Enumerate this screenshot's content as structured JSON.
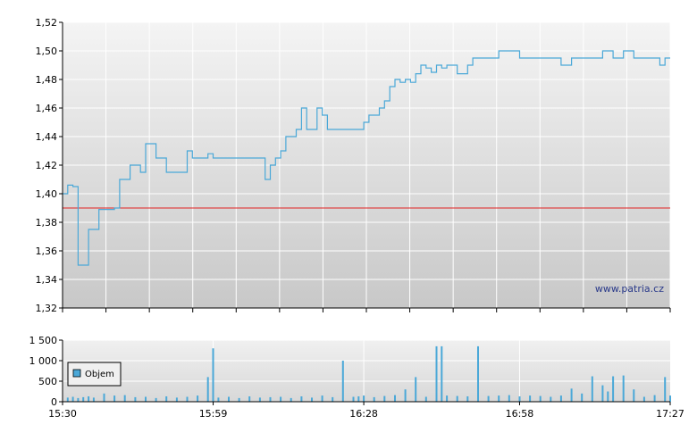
{
  "watermark": "www.patria.cz",
  "colors": {
    "price_line": "#4aa8d8",
    "reference_line": "#e02020",
    "volume_bar": "#4aa8d8",
    "plot_bg_top": "#f4f4f4",
    "plot_bg_bottom": "#c8c8c8",
    "grid": "#ffffff",
    "axis": "#000000"
  },
  "chart_data": [
    {
      "type": "line",
      "title": "",
      "xlabel": "",
      "ylabel": "",
      "ylim": [
        1.32,
        1.52
      ],
      "y_ticks": [
        "1,32",
        "1,34",
        "1,36",
        "1,38",
        "1,40",
        "1,42",
        "1,44",
        "1,46",
        "1,48",
        "1,50",
        "1,52"
      ],
      "x_range": [
        "15:30",
        "17:27"
      ],
      "reference_line": 1.39,
      "grid": true,
      "series": [
        {
          "x": [
            "15:30",
            "15:31",
            "15:32",
            "15:33",
            "15:34",
            "15:35",
            "15:36",
            "15:37",
            "15:38",
            "15:39",
            "15:40",
            "15:41",
            "15:42",
            "15:43",
            "15:44",
            "15:45",
            "15:46",
            "15:47",
            "15:48",
            "15:50",
            "15:51",
            "15:52",
            "15:53",
            "15:54",
            "15:55",
            "15:56",
            "15:58",
            "15:59",
            "16:00",
            "16:01",
            "16:02",
            "16:03",
            "16:05",
            "16:07",
            "16:09",
            "16:10",
            "16:11",
            "16:12",
            "16:13",
            "16:14",
            "16:15",
            "16:16",
            "16:17",
            "16:18",
            "16:19",
            "16:20",
            "16:21",
            "16:22",
            "16:23",
            "16:24",
            "16:26",
            "16:28",
            "16:29",
            "16:30",
            "16:31",
            "16:32",
            "16:33",
            "16:34",
            "16:35",
            "16:36",
            "16:37",
            "16:38",
            "16:39",
            "16:40",
            "16:41",
            "16:42",
            "16:43",
            "16:44",
            "16:45",
            "16:46",
            "16:47",
            "16:48",
            "16:49",
            "16:50",
            "16:52",
            "16:54",
            "16:56",
            "16:58",
            "17:00",
            "17:02",
            "17:04",
            "17:06",
            "17:08",
            "17:10",
            "17:12",
            "17:14",
            "17:16",
            "17:18",
            "17:20",
            "17:22",
            "17:24",
            "17:25",
            "17:26",
            "17:27"
          ],
          "values": [
            1.4,
            1.406,
            1.405,
            1.35,
            1.35,
            1.375,
            1.375,
            1.389,
            1.389,
            1.389,
            1.39,
            1.41,
            1.41,
            1.42,
            1.42,
            1.415,
            1.435,
            1.435,
            1.425,
            1.415,
            1.415,
            1.415,
            1.415,
            1.43,
            1.425,
            1.425,
            1.428,
            1.425,
            1.425,
            1.425,
            1.425,
            1.425,
            1.425,
            1.425,
            1.41,
            1.42,
            1.425,
            1.43,
            1.44,
            1.44,
            1.445,
            1.46,
            1.445,
            1.445,
            1.46,
            1.455,
            1.445,
            1.445,
            1.445,
            1.445,
            1.445,
            1.45,
            1.455,
            1.455,
            1.46,
            1.465,
            1.475,
            1.48,
            1.478,
            1.48,
            1.478,
            1.484,
            1.49,
            1.488,
            1.485,
            1.49,
            1.488,
            1.49,
            1.49,
            1.484,
            1.484,
            1.49,
            1.495,
            1.495,
            1.495,
            1.5,
            1.5,
            1.495,
            1.495,
            1.495,
            1.495,
            1.49,
            1.495,
            1.495,
            1.495,
            1.5,
            1.495,
            1.5,
            1.495,
            1.495,
            1.495,
            1.49,
            1.495,
            1.495
          ]
        }
      ]
    },
    {
      "type": "bar",
      "title": "",
      "xlabel": "",
      "ylabel": "",
      "ylim": [
        0,
        1500
      ],
      "y_ticks": [
        "0",
        "500",
        "1 000",
        "1 500"
      ],
      "x_ticks": [
        "15:30",
        "15:59",
        "16:28",
        "16:58",
        "17:27"
      ],
      "legend": {
        "label": "Objem",
        "placement": "left"
      },
      "grid": true,
      "series": [
        {
          "name": "Objem",
          "x": [
            "15:31",
            "15:32",
            "15:33",
            "15:34",
            "15:35",
            "15:36",
            "15:38",
            "15:40",
            "15:42",
            "15:44",
            "15:46",
            "15:48",
            "15:50",
            "15:52",
            "15:54",
            "15:56",
            "15:58",
            "15:59",
            "16:00",
            "16:02",
            "16:04",
            "16:06",
            "16:08",
            "16:10",
            "16:12",
            "16:14",
            "16:16",
            "16:18",
            "16:20",
            "16:22",
            "16:24",
            "16:26",
            "16:27",
            "16:28",
            "16:30",
            "16:32",
            "16:34",
            "16:36",
            "16:38",
            "16:40",
            "16:42",
            "16:43",
            "16:44",
            "16:46",
            "16:48",
            "16:50",
            "16:52",
            "16:54",
            "16:56",
            "16:58",
            "17:00",
            "17:02",
            "17:04",
            "17:06",
            "17:08",
            "17:10",
            "17:12",
            "17:14",
            "17:15",
            "17:16",
            "17:18",
            "17:20",
            "17:22",
            "17:24",
            "17:26",
            "17:27"
          ],
          "values": [
            100,
            120,
            90,
            110,
            130,
            100,
            200,
            150,
            160,
            110,
            120,
            90,
            130,
            100,
            120,
            150,
            600,
            1300,
            100,
            120,
            90,
            130,
            100,
            110,
            120,
            90,
            130,
            100,
            150,
            110,
            1000,
            120,
            130,
            150,
            110,
            140,
            160,
            300,
            600,
            120,
            1350,
            1350,
            150,
            140,
            130,
            1350,
            140,
            150,
            160,
            130,
            150,
            140,
            120,
            150,
            320,
            200,
            620,
            400,
            250,
            620,
            640,
            300,
            120,
            160,
            600,
            150
          ]
        }
      ]
    }
  ]
}
